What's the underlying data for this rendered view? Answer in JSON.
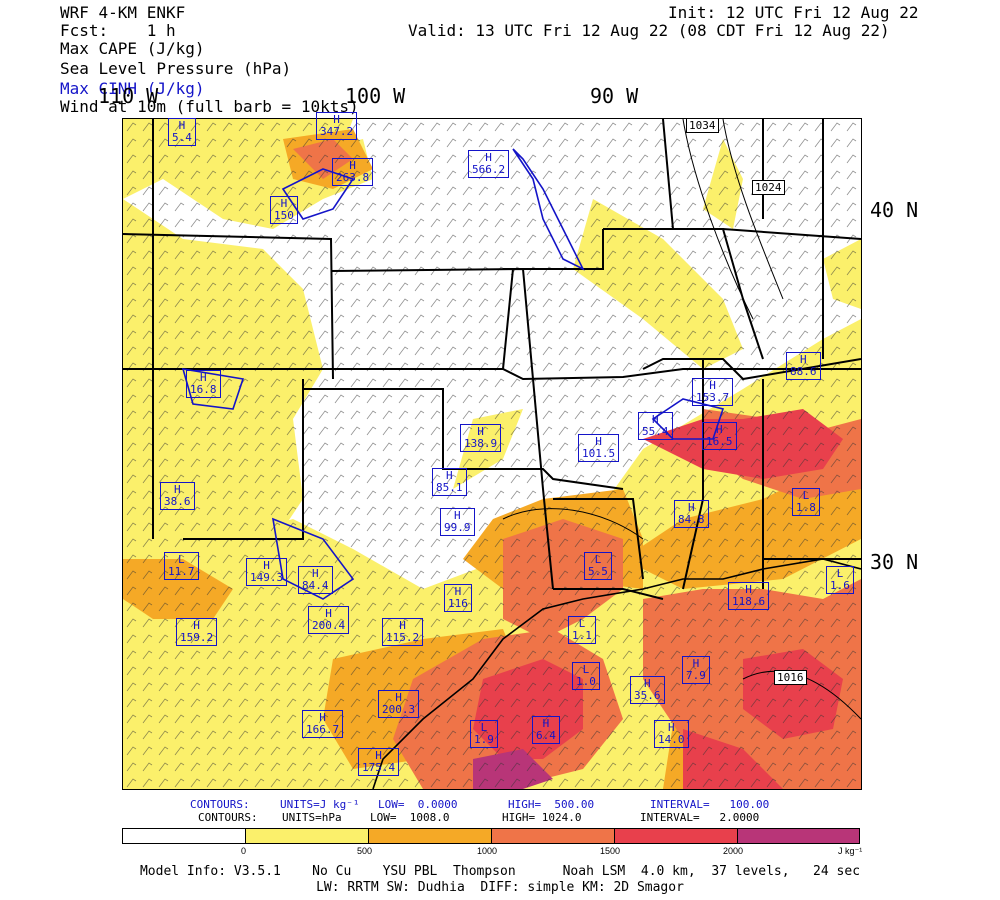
{
  "header": {
    "model": "WRF 4-KM ENKF",
    "fcst": "Fcst:    1 h",
    "init": "Init: 12 UTC Fri 12 Aug 22",
    "valid": "Valid: 13 UTC Fri 12 Aug 22 (08 CDT Fri 12 Aug 22)",
    "fields": [
      "Max CAPE (J/kg)",
      "Sea Level Pressure (hPa)",
      "Max CINH (J/kg)",
      "Wind at 10m (full barb = 10kts)"
    ]
  },
  "map": {
    "lon_labels": [
      "110 W",
      "100 W",
      "90 W"
    ],
    "lat_labels": [
      "40 N",
      "30 N"
    ],
    "pressure_labels": [
      "1034",
      "1024",
      "1016"
    ],
    "highs": [
      "5.4",
      "347.2",
      "263.8",
      "150",
      "566.2",
      "16.8",
      "153.7",
      "88.6",
      "138.9",
      "101.5",
      "85.1",
      "99.9",
      "84.8",
      "38.6",
      "149.3",
      "84.4",
      "159.2",
      "200.4",
      "115.2",
      "35.6",
      "166.7",
      "200.3",
      "175.4",
      "14.0",
      "7.9",
      "6.4",
      "116",
      "118.6",
      "55.4",
      "16.5"
    ],
    "lows": [
      "11.7",
      "5.5",
      "1.0",
      "1.9",
      "1.1",
      "1.8",
      "1.6"
    ],
    "colors": {
      "cape_0": "#ffffff",
      "cape_500": "#fbf06b",
      "cape_1000": "#f5a926",
      "cape_1500": "#ef7448",
      "cape_2000": "#e8404c",
      "cape_2500": "#b83578",
      "cinh": "#1414c8",
      "text_blue": "#1414c8"
    }
  },
  "contour_info": {
    "cinh": {
      "label": "CONTOURS:",
      "units": "UNITS=J kg⁻¹",
      "low": "LOW=  0.0000",
      "high": "HIGH=  500.00",
      "interval": "INTERVAL=   100.00"
    },
    "slp": {
      "label": "CONTOURS:",
      "units": "UNITS=hPa",
      "low": "LOW=  1008.0",
      "high": "HIGH= 1024.0",
      "interval": "INTERVAL=   2.0000"
    }
  },
  "colorbar": {
    "ticks": [
      "0",
      "500",
      "1000",
      "1500",
      "2000"
    ],
    "units": "J kg⁻¹",
    "colors": [
      "#ffffff",
      "#fbf06b",
      "#f5a926",
      "#ef7448",
      "#e8404c",
      "#b83578"
    ]
  },
  "footer": {
    "line1": "Model Info: V3.5.1    No Cu    YSU PBL  Thompson      Noah LSM  4.0 km,  37 levels,   24 sec",
    "line2": "LW: RRTM SW: Dudhia  DIFF: simple KM: 2D Smagor"
  }
}
